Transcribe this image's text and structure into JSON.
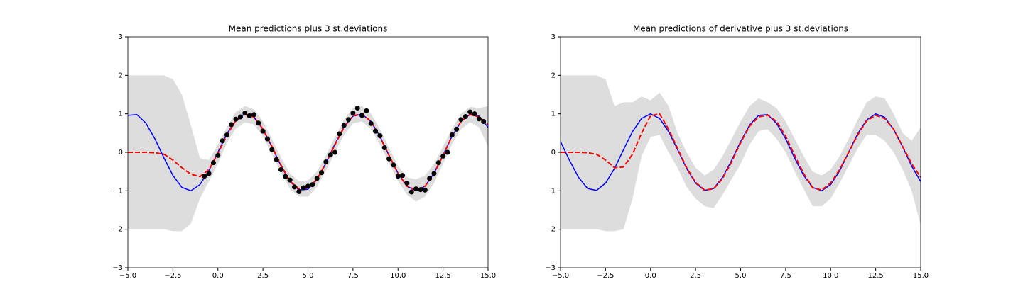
{
  "chart_data": [
    {
      "type": "line",
      "title": "Mean predictions plus 3 st.deviations",
      "x": [
        -5,
        -4.5,
        -4,
        -3.5,
        -3,
        -2.5,
        -2,
        -1.5,
        -1,
        -0.5,
        0,
        0.5,
        1,
        1.5,
        2,
        2.5,
        3,
        3.5,
        4,
        4.5,
        5,
        5.5,
        6,
        6.5,
        7,
        7.5,
        8,
        8.5,
        9,
        9.5,
        10,
        10.5,
        11,
        11.5,
        12,
        12.5,
        13,
        13.5,
        14,
        14.5,
        15
      ],
      "band": {
        "color": "#dddddd",
        "upper": [
          2,
          2,
          2,
          2,
          2,
          1.9,
          1.5,
          0.7,
          -0.15,
          -0.2,
          0.2,
          0.65,
          1.05,
          1.2,
          1.12,
          0.8,
          0.35,
          -0.13,
          -0.55,
          -0.75,
          -0.73,
          -0.5,
          -0.08,
          0.4,
          0.85,
          1.15,
          1.2,
          1.0,
          0.6,
          0.12,
          -0.35,
          -0.65,
          -0.7,
          -0.6,
          -0.3,
          0.15,
          0.62,
          1.0,
          1.18,
          1.15,
          1.2
        ],
        "lower": [
          -2,
          -2,
          -2,
          -2,
          -2,
          -2.05,
          -2.05,
          -1.85,
          -1.2,
          -0.75,
          -0.3,
          0.25,
          0.62,
          0.78,
          0.72,
          0.4,
          -0.05,
          -0.53,
          -0.95,
          -1.15,
          -1.15,
          -0.9,
          -0.48,
          0.0,
          0.45,
          0.75,
          0.8,
          0.6,
          0.2,
          -0.28,
          -0.75,
          -1.1,
          -1.28,
          -1.15,
          -0.8,
          -0.3,
          0.22,
          0.6,
          0.78,
          0.65,
          0.15
        ]
      },
      "series": [
        {
          "color": "#0000ff",
          "dashed": false,
          "values": [
            0.96,
            0.98,
            0.76,
            0.35,
            -0.14,
            -0.6,
            -0.91,
            -1.0,
            -0.84,
            -0.48,
            0,
            0.48,
            0.84,
            1.0,
            0.91,
            0.6,
            0.14,
            -0.35,
            -0.76,
            -0.98,
            -0.96,
            -0.71,
            -0.28,
            0.22,
            0.66,
            0.94,
            0.99,
            0.8,
            0.41,
            -0.08,
            -0.54,
            -0.88,
            -1.0,
            -0.88,
            -0.54,
            -0.07,
            0.42,
            0.8,
            0.99,
            0.94,
            0.65
          ]
        },
        {
          "color": "#ff0000",
          "dashed": true,
          "values": [
            0,
            0,
            0,
            -0.01,
            -0.05,
            -0.2,
            -0.4,
            -0.57,
            -0.63,
            -0.45,
            -0.03,
            0.45,
            0.83,
            0.98,
            0.92,
            0.6,
            0.15,
            -0.33,
            -0.75,
            -0.95,
            -0.93,
            -0.7,
            -0.28,
            0.2,
            0.65,
            0.95,
            1.0,
            0.8,
            0.4,
            -0.08,
            -0.55,
            -0.88,
            -0.98,
            -0.88,
            -0.55,
            -0.08,
            0.42,
            0.8,
            0.98,
            0.92,
            0.72
          ]
        }
      ],
      "points": {
        "color": "#000000",
        "x": [
          -0.75,
          -0.5,
          -0.25,
          0,
          0.25,
          0.5,
          0.75,
          1,
          1.25,
          1.5,
          1.75,
          2,
          2.25,
          2.5,
          2.75,
          3,
          3.25,
          3.5,
          3.75,
          4,
          4.25,
          4.5,
          4.75,
          5,
          5.25,
          5.5,
          5.75,
          6,
          6.25,
          6.5,
          6.75,
          7,
          7.25,
          7.5,
          7.75,
          8,
          8.25,
          8.5,
          8.75,
          9,
          9.25,
          9.5,
          9.75,
          10,
          10.25,
          10.5,
          10.75,
          11,
          11.25,
          11.5,
          11.75,
          12,
          12.25,
          12.5,
          12.75,
          13,
          13.25,
          13.5,
          13.75,
          14,
          14.25,
          14.5,
          14.75
        ],
        "y": [
          -0.62,
          -0.55,
          -0.27,
          -0.08,
          0.3,
          0.45,
          0.72,
          0.86,
          0.92,
          1.02,
          0.95,
          0.98,
          0.76,
          0.55,
          0.35,
          0.07,
          -0.19,
          -0.45,
          -0.63,
          -0.72,
          -0.9,
          -1.02,
          -0.92,
          -0.88,
          -0.84,
          -0.68,
          -0.53,
          -0.25,
          -0.07,
          0.0,
          0.48,
          0.7,
          0.85,
          1.02,
          1.15,
          0.96,
          1.08,
          0.75,
          0.55,
          0.43,
          0.12,
          -0.17,
          -0.33,
          -0.62,
          -0.6,
          -0.8,
          -1.03,
          -0.95,
          -0.97,
          -0.98,
          -0.68,
          -0.55,
          -0.27,
          -0.1,
          0.0,
          0.45,
          0.6,
          0.85,
          0.93,
          1.05,
          1.0,
          0.87,
          0.8
        ]
      },
      "xlim": [
        -5,
        15
      ],
      "ylim": [
        -3,
        3
      ],
      "xticks": [
        {
          "value": -5,
          "label": "−5.0"
        },
        {
          "value": -2.5,
          "label": "−2.5"
        },
        {
          "value": 0,
          "label": "0.0"
        },
        {
          "value": 2.5,
          "label": "2.5"
        },
        {
          "value": 5,
          "label": "5.0"
        },
        {
          "value": 7.5,
          "label": "7.5"
        },
        {
          "value": 10,
          "label": "10.0"
        },
        {
          "value": 12.5,
          "label": "12.5"
        },
        {
          "value": 15,
          "label": "15.0"
        }
      ],
      "yticks": [
        {
          "value": -3,
          "label": "−3"
        },
        {
          "value": -2,
          "label": "−2"
        },
        {
          "value": -1,
          "label": "−1"
        },
        0,
        1,
        2,
        3
      ]
    },
    {
      "type": "line",
      "title": "Mean predictions of derivative plus 3 st.deviations",
      "x": [
        -5,
        -4.5,
        -4,
        -3.5,
        -3,
        -2.5,
        -2,
        -1.5,
        -1,
        -0.5,
        0,
        0.5,
        1,
        1.5,
        2,
        2.5,
        3,
        3.5,
        4,
        4.5,
        5,
        5.5,
        6,
        6.5,
        7,
        7.5,
        8,
        8.5,
        9,
        9.5,
        10,
        10.5,
        11,
        11.5,
        12,
        12.5,
        13,
        13.5,
        14,
        14.5,
        15
      ],
      "band": {
        "color": "#dddddd",
        "upper": [
          2,
          2,
          2,
          2,
          2,
          1.9,
          1.2,
          1.3,
          1.3,
          1.45,
          1.35,
          1.55,
          1.2,
          0.5,
          0,
          -0.4,
          -0.6,
          -0.45,
          -0.1,
          0.35,
          0.8,
          1.2,
          1.4,
          1.3,
          1.15,
          0.8,
          0.35,
          -0.1,
          -0.5,
          -0.6,
          -0.45,
          -0.1,
          0.35,
          0.85,
          1.3,
          1.45,
          1.4,
          1.0,
          0.5,
          0.3,
          0.65
        ],
        "lower": [
          -2,
          -2,
          -2,
          -2,
          -2,
          -2.05,
          -2.05,
          -2.0,
          -1.2,
          -0.1,
          0.4,
          0.45,
          0.0,
          -0.4,
          -0.9,
          -1.2,
          -1.4,
          -1.45,
          -1.1,
          -0.7,
          -0.3,
          0.2,
          0.55,
          0.6,
          0.35,
          0.0,
          -0.5,
          -0.95,
          -1.4,
          -1.4,
          -1.2,
          -0.8,
          -0.35,
          0.1,
          0.45,
          0.45,
          0.3,
          0.0,
          -0.45,
          -1.0,
          -1.9
        ]
      },
      "series": [
        {
          "color": "#0000ff",
          "dashed": false,
          "values": [
            0.28,
            -0.21,
            -0.65,
            -0.94,
            -0.99,
            -0.8,
            -0.42,
            0.07,
            0.54,
            0.88,
            1,
            0.88,
            0.54,
            0.07,
            -0.42,
            -0.8,
            -0.99,
            -0.94,
            -0.65,
            -0.21,
            0.28,
            0.71,
            0.96,
            0.98,
            0.75,
            0.35,
            -0.15,
            -0.6,
            -0.91,
            -1.0,
            -0.84,
            -0.48,
            0.0,
            0.48,
            0.84,
            1.0,
            0.91,
            0.59,
            0.14,
            -0.36,
            -0.76
          ]
        },
        {
          "color": "#ff0000",
          "dashed": true,
          "values": [
            0,
            0,
            0,
            -0.01,
            -0.05,
            -0.2,
            -0.4,
            -0.38,
            -0.05,
            0.5,
            0.95,
            1.0,
            0.6,
            0.1,
            -0.4,
            -0.78,
            -0.98,
            -0.95,
            -0.68,
            -0.25,
            0.25,
            0.68,
            0.92,
            0.97,
            0.8,
            0.42,
            -0.08,
            -0.55,
            -0.92,
            -0.98,
            -0.8,
            -0.45,
            0.0,
            0.45,
            0.82,
            0.96,
            0.88,
            0.6,
            0.15,
            -0.3,
            -0.65
          ]
        }
      ],
      "xlim": [
        -5,
        15
      ],
      "ylim": [
        -3,
        3
      ],
      "xticks": [
        {
          "value": -5,
          "label": "−5.0"
        },
        {
          "value": -2.5,
          "label": "−2.5"
        },
        {
          "value": 0,
          "label": "0.0"
        },
        {
          "value": 2.5,
          "label": "2.5"
        },
        {
          "value": 5,
          "label": "5.0"
        },
        {
          "value": 7.5,
          "label": "7.5"
        },
        {
          "value": 10,
          "label": "10.0"
        },
        {
          "value": 12.5,
          "label": "12.5"
        },
        {
          "value": 15,
          "label": "15.0"
        }
      ],
      "yticks": [
        {
          "value": -3,
          "label": "−3"
        },
        {
          "value": -2,
          "label": "−2"
        },
        {
          "value": -1,
          "label": "−1"
        },
        0,
        1,
        2,
        3
      ]
    }
  ]
}
